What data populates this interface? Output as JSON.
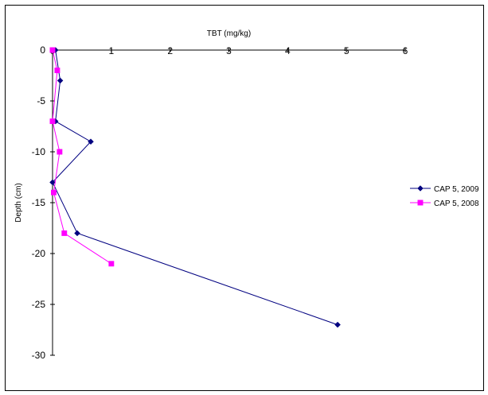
{
  "chart_data": {
    "type": "line",
    "title": "",
    "xlabel": "TBT (mg/kg)",
    "ylabel": "Depth (cm)",
    "xlim": [
      0,
      6
    ],
    "ylim": [
      -30,
      0
    ],
    "x_ticks": [
      "0",
      "1",
      "2",
      "3",
      "4",
      "5",
      "6"
    ],
    "y_ticks": [
      "0",
      "-5",
      "-10",
      "-15",
      "-20",
      "-25",
      "-30"
    ],
    "x_axis_position": "top",
    "grid": false,
    "legend_position": "right",
    "series": [
      {
        "name": "CAP 5, 2009",
        "color": "#000080",
        "marker": "diamond",
        "points": [
          {
            "x": 0.05,
            "y": 0
          },
          {
            "x": 0.13,
            "y": -3
          },
          {
            "x": 0.05,
            "y": -7
          },
          {
            "x": 0.65,
            "y": -9
          },
          {
            "x": 0.0,
            "y": -13
          },
          {
            "x": 0.42,
            "y": -18
          },
          {
            "x": 4.85,
            "y": -27
          }
        ]
      },
      {
        "name": "CAP 5, 2008",
        "color": "#ff00ff",
        "marker": "square",
        "points": [
          {
            "x": 0.0,
            "y": 0
          },
          {
            "x": 0.08,
            "y": -2
          },
          {
            "x": 0.0,
            "y": -7
          },
          {
            "x": 0.12,
            "y": -10
          },
          {
            "x": 0.02,
            "y": -14
          },
          {
            "x": 0.2,
            "y": -18
          },
          {
            "x": 1.0,
            "y": -21
          }
        ]
      }
    ]
  }
}
